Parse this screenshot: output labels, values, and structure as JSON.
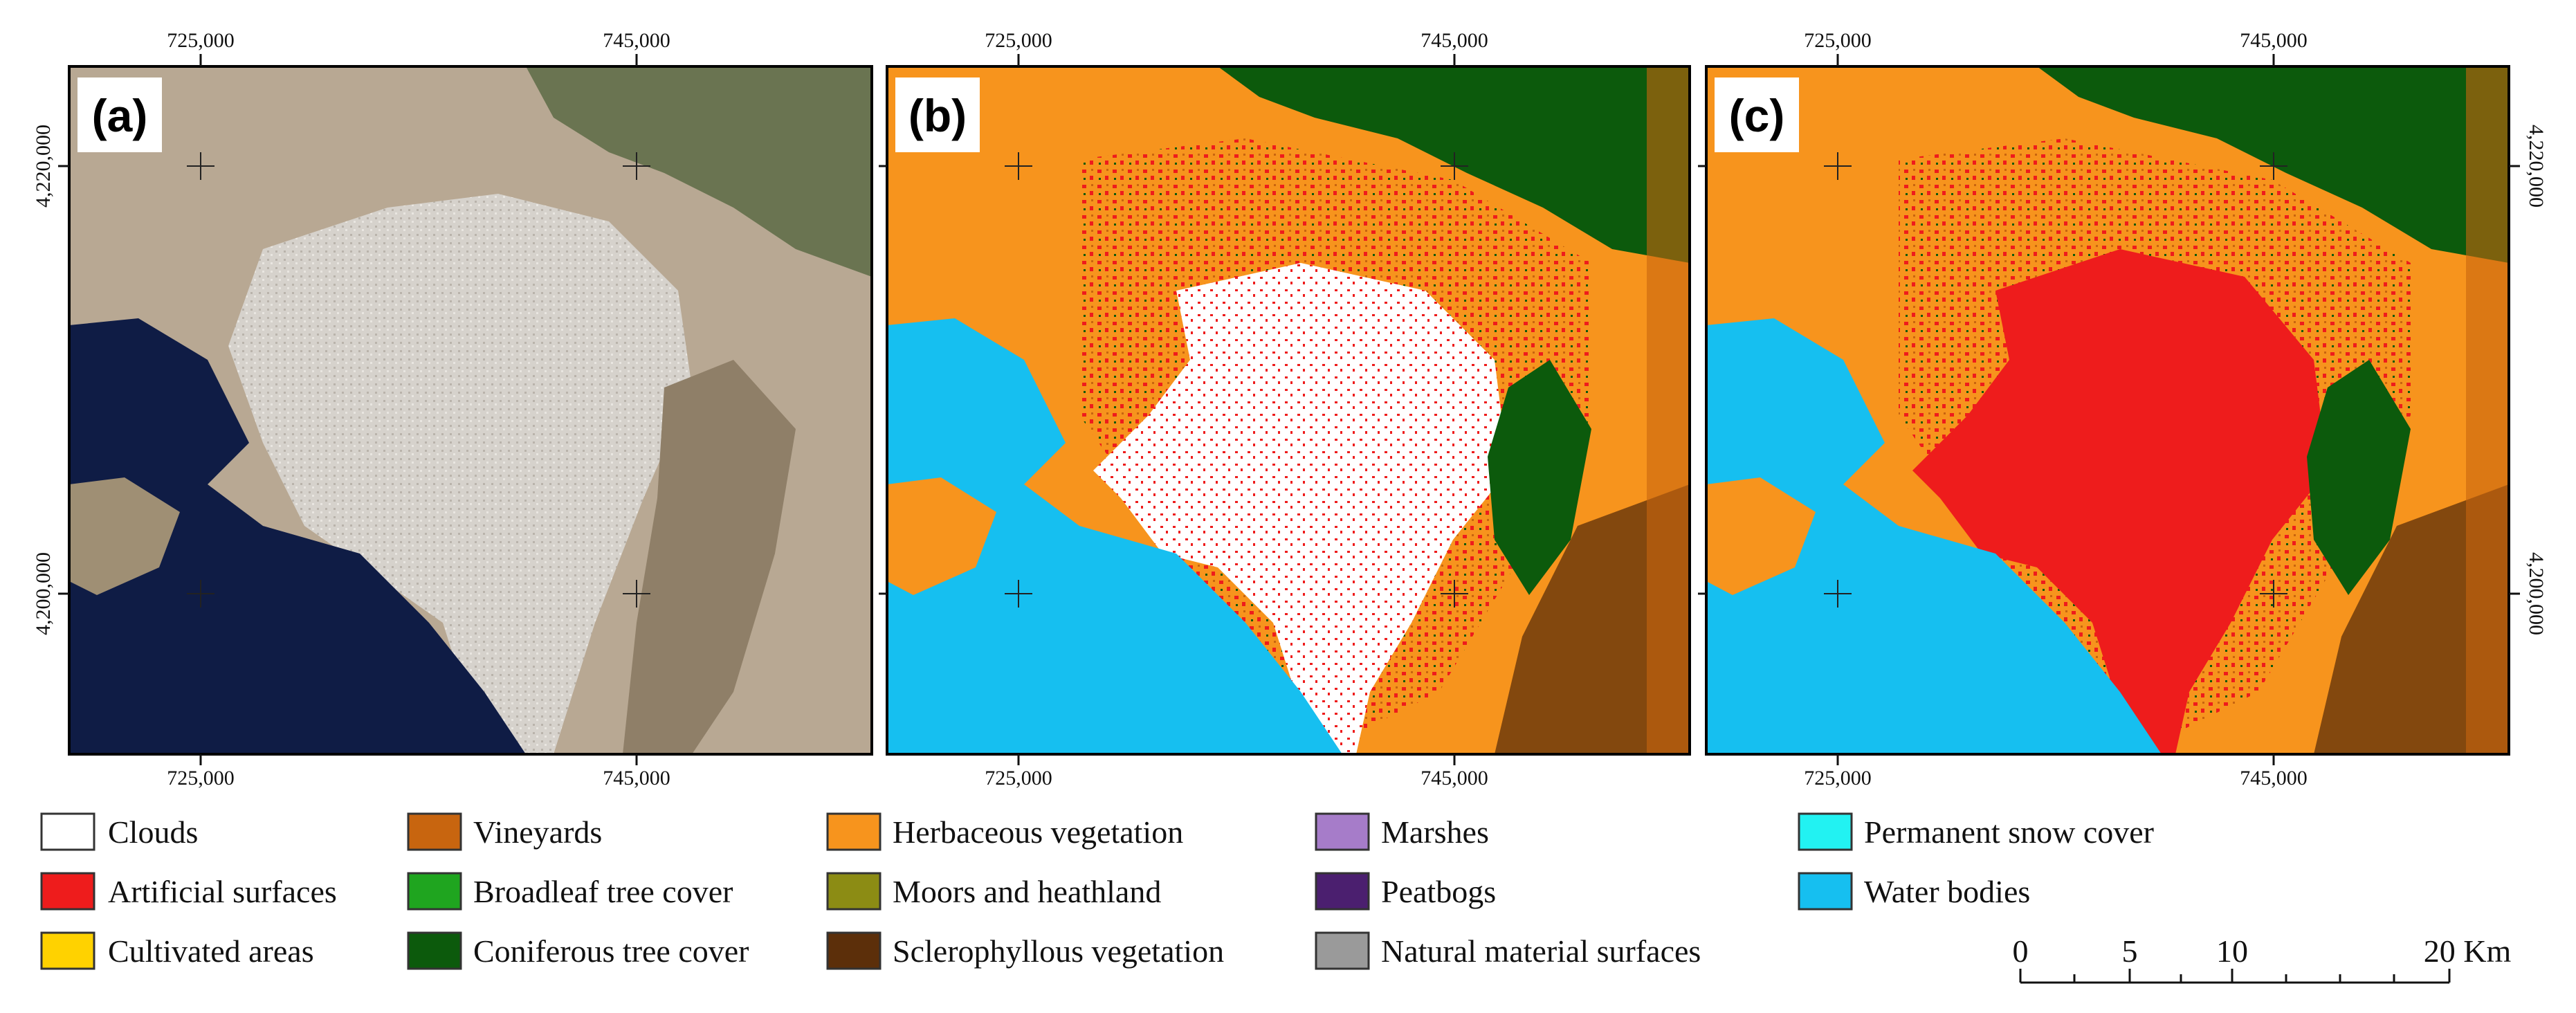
{
  "panels": [
    {
      "id": "a",
      "label": "(a)",
      "kind": "satellite"
    },
    {
      "id": "b",
      "label": "(b)",
      "kind": "classified-with-clouds"
    },
    {
      "id": "c",
      "label": "(c)",
      "kind": "classified"
    }
  ],
  "axes": {
    "x_ticks": [
      "725,000",
      "745,000"
    ],
    "y_ticks": [
      "4,220,000",
      "4,200,000"
    ]
  },
  "legend": [
    {
      "label": "Clouds",
      "color": "#ffffff"
    },
    {
      "label": "Artificial surfaces",
      "color": "#ee1c1c"
    },
    {
      "label": "Cultivated areas",
      "color": "#ffd200"
    },
    {
      "label": "Vineyards",
      "color": "#c8650f"
    },
    {
      "label": "Broadleaf tree cover",
      "color": "#1fa51f"
    },
    {
      "label": "Coniferous tree cover",
      "color": "#0c5a0c"
    },
    {
      "label": "Herbaceous vegetation",
      "color": "#f7941d"
    },
    {
      "label": "Moors and heathland",
      "color": "#8c8c14"
    },
    {
      "label": "Sclerophyllous vegetation",
      "color": "#5c2f0a"
    },
    {
      "label": "Marshes",
      "color": "#a67cc9"
    },
    {
      "label": "Peatbogs",
      "color": "#4b1f6f"
    },
    {
      "label": "Natural material surfaces",
      "color": "#9a9a9a"
    },
    {
      "label": "Permanent snow cover",
      "color": "#22f2f2"
    },
    {
      "label": "Water bodies",
      "color": "#16bff0"
    }
  ],
  "scale_bar": {
    "ticks": [
      "0",
      "5",
      "10",
      "20 Km"
    ]
  },
  "colors": {
    "sea_dark": "#0f1c45",
    "land_satellite": "#b8a893",
    "urban_satellite": "#d6d2cc",
    "mountain_satellite": "#8f7f68",
    "green_satellite": "#5c6b45"
  }
}
